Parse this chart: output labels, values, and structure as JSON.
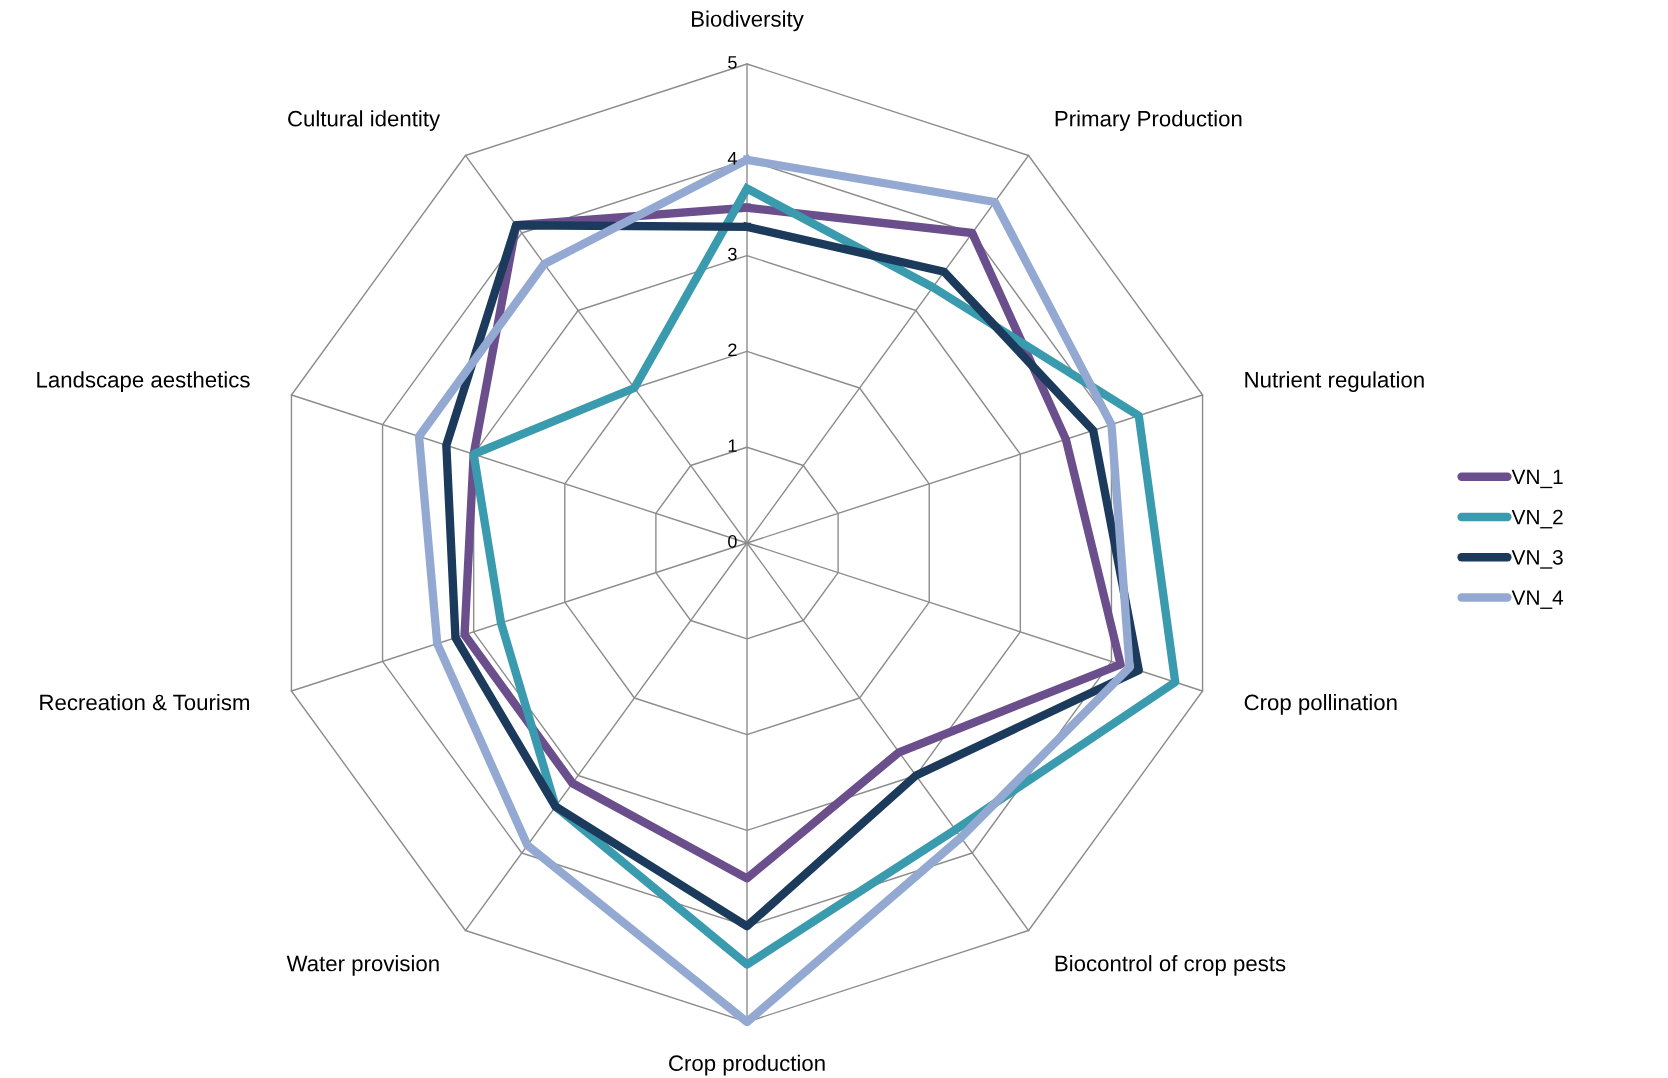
{
  "chart_data": {
    "type": "radar",
    "categories": [
      "Biodiversity",
      "Primary Production",
      "Nutrient regulation",
      "Crop pollination",
      "Biocontrol of crop pests",
      "Crop production",
      "Water provision",
      "Recreation & Tourism",
      "Landscape aesthetics",
      "Cultural identity"
    ],
    "series": [
      {
        "name": "VN_1",
        "color": "#6a4f8c",
        "values": [
          3.5,
          4.0,
          3.5,
          4.1,
          2.7,
          3.5,
          3.1,
          3.1,
          3.0,
          4.1
        ]
      },
      {
        "name": "VN_2",
        "color": "#3a9aae",
        "values": [
          3.7,
          3.3,
          4.3,
          4.7,
          3.7,
          4.4,
          3.4,
          2.7,
          3.0,
          2.0
        ]
      },
      {
        "name": "VN_3",
        "color": "#1b3a5c",
        "values": [
          3.3,
          3.5,
          3.8,
          4.3,
          3.0,
          4.0,
          3.4,
          3.2,
          3.3,
          4.1
        ]
      },
      {
        "name": "VN_4",
        "color": "#93a9d2",
        "values": [
          4.0,
          4.4,
          4.0,
          4.2,
          3.8,
          5.0,
          3.9,
          3.4,
          3.6,
          3.6
        ]
      }
    ],
    "ylim": [
      0,
      5
    ],
    "yticks": [
      0,
      1,
      2,
      3,
      4,
      5
    ],
    "grid": true,
    "legend": "right"
  }
}
